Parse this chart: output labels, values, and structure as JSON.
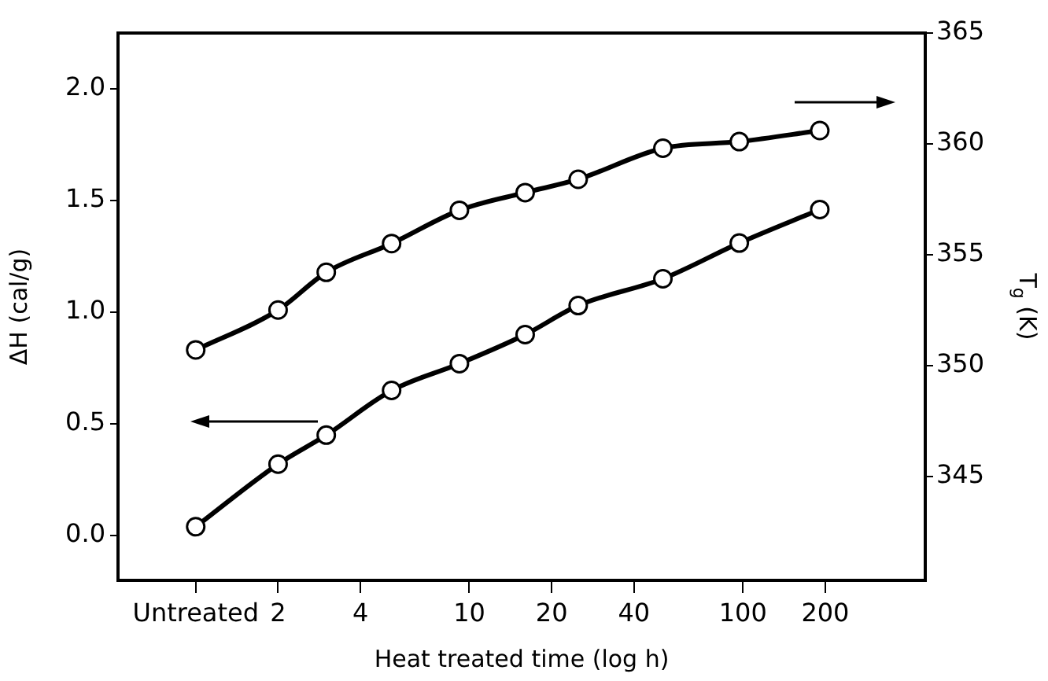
{
  "chart_data": {
    "type": "line",
    "xlabel": "Heat treated time (log h)",
    "ylabel": "ΔH (cal/g)",
    "y2label": "T$_{g}$ (K)",
    "x": [
      1,
      2,
      3,
      5.2,
      9.2,
      16,
      25,
      51,
      97,
      191
    ],
    "series": [
      {
        "color": "#000000",
        "values": [
          0.04,
          0.32,
          0.45,
          0.65,
          0.77,
          0.9,
          1.03,
          1.15,
          1.31,
          1.46
        ]
      },
      {
        "color": "#000000",
        "axis": "y2",
        "values": [
          350.7,
          352.5,
          354.2,
          355.5,
          357.0,
          357.8,
          358.4,
          359.8,
          360.1,
          360.6
        ]
      }
    ],
    "log": "x",
    "marker": "circle",
    "line_style": "solid",
    "xlim": [
      0.52,
      464
    ],
    "xticks": [
      {
        "value": 1,
        "label": "Untreated"
      },
      2,
      4,
      10,
      20,
      40,
      100,
      200
    ],
    "ylim": [
      -0.2,
      2.25
    ],
    "yticks": [
      {
        "value": 0,
        "label": "0.0"
      },
      {
        "value": 0.5,
        "label": "0.5"
      },
      {
        "value": 1,
        "label": "1.0"
      },
      {
        "value": 1.5,
        "label": "1.5"
      },
      {
        "value": 2,
        "label": "2.0"
      }
    ],
    "y2lim": [
      340.3,
      365
    ],
    "y2ticks": [
      345,
      350,
      355,
      360,
      365
    ]
  }
}
